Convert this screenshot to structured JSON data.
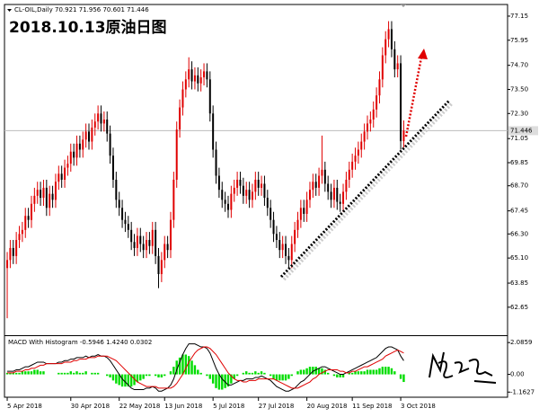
{
  "chart_data": [
    {
      "type": "candlestick",
      "title": "CL-OIL,Daily 70.921 71.956 70.601 71.446",
      "annotation": "2018.10.13原油日图",
      "up_color": "#e00000",
      "down_color": "#000000",
      "open": [
        64.6,
        65.0,
        65.6,
        65.2,
        66.0,
        66.3,
        66.5,
        67.2,
        67.0,
        67.8,
        68.2,
        68.5,
        68.1,
        68.6,
        67.6,
        68.3,
        68.0,
        68.9,
        69.3,
        69.0,
        69.6,
        69.8,
        70.4,
        70.1,
        70.8,
        70.5,
        71.0,
        71.4,
        70.9,
        71.6,
        71.9,
        72.3,
        71.8,
        72.0,
        71.3,
        70.2,
        69.0,
        68.0,
        67.6,
        67.0,
        66.8,
        66.5,
        65.9,
        65.6,
        66.2,
        65.8,
        65.5,
        66.0,
        65.7,
        66.5,
        65.2,
        64.3,
        65.0,
        65.8,
        65.5,
        67.0,
        69.0,
        71.5,
        72.6,
        73.5,
        74.0,
        74.5,
        73.9,
        74.2,
        73.8,
        74.1,
        74.4,
        74.0,
        72.3,
        70.5,
        69.2,
        68.5,
        68.0,
        67.8,
        67.5,
        68.3,
        68.6,
        69.0,
        68.7,
        68.2,
        68.5,
        68.0,
        68.4,
        69.0,
        68.6,
        68.8,
        68.1,
        67.6,
        67.0,
        66.3,
        66.0,
        65.5,
        65.8,
        65.2,
        65.0,
        65.8,
        66.5,
        67.0,
        67.6,
        67.3,
        68.0,
        68.5,
        68.9,
        68.6,
        69.2,
        69.5,
        68.8,
        68.4,
        68.0,
        68.6,
        67.9,
        67.8,
        68.4,
        69.0,
        69.5,
        69.9,
        70.2,
        70.5,
        70.9,
        71.4,
        71.8,
        72.0,
        72.5,
        73.2,
        74.0,
        75.2,
        76.0,
        76.5,
        75.5,
        74.5,
        74.8,
        70.921
      ],
      "high": [
        65.4,
        66.0,
        66.0,
        66.4,
        66.7,
        66.9,
        67.6,
        67.6,
        68.2,
        68.6,
        68.9,
        68.9,
        69.0,
        69.0,
        68.7,
        68.7,
        69.3,
        69.7,
        69.7,
        70.0,
        70.2,
        70.8,
        70.8,
        71.2,
        71.2,
        71.4,
        71.8,
        71.8,
        72.0,
        72.3,
        72.7,
        72.7,
        72.4,
        72.4,
        71.7,
        70.6,
        69.4,
        68.4,
        68.0,
        67.4,
        67.2,
        66.9,
        66.3,
        66.6,
        66.6,
        66.2,
        66.4,
        66.4,
        66.9,
        66.9,
        65.6,
        65.4,
        66.2,
        66.2,
        67.4,
        69.4,
        71.9,
        73.0,
        73.9,
        74.4,
        75.1,
        74.9,
        74.6,
        74.6,
        74.5,
        74.8,
        74.8,
        74.4,
        72.7,
        70.9,
        69.6,
        68.9,
        68.4,
        68.2,
        68.7,
        69.0,
        69.4,
        69.4,
        69.1,
        68.9,
        68.9,
        68.8,
        69.4,
        69.4,
        69.2,
        69.2,
        68.5,
        68.0,
        67.4,
        66.7,
        66.4,
        66.2,
        66.2,
        65.6,
        66.2,
        66.9,
        67.4,
        68.0,
        68.0,
        68.4,
        68.9,
        69.3,
        69.3,
        69.6,
        71.2,
        69.9,
        69.2,
        68.8,
        69.0,
        69.0,
        68.3,
        68.8,
        69.4,
        69.9,
        70.3,
        70.6,
        70.9,
        71.3,
        71.8,
        72.2,
        72.4,
        72.9,
        73.6,
        74.4,
        75.6,
        76.4,
        76.9,
        76.9,
        75.9,
        75.2,
        75.2,
        71.956
      ],
      "low": [
        62.1,
        64.6,
        64.8,
        64.8,
        65.6,
        65.9,
        66.1,
        66.6,
        66.6,
        67.4,
        67.8,
        67.7,
        67.7,
        67.2,
        67.2,
        67.6,
        67.6,
        68.5,
        68.6,
        68.6,
        69.2,
        69.4,
        69.7,
        69.7,
        70.1,
        70.1,
        70.6,
        70.5,
        70.5,
        71.2,
        71.5,
        71.4,
        71.4,
        70.9,
        69.8,
        68.6,
        67.6,
        67.2,
        66.6,
        66.4,
        66.1,
        65.5,
        65.2,
        65.2,
        65.4,
        65.1,
        65.1,
        65.3,
        65.3,
        64.8,
        63.6,
        63.9,
        64.6,
        65.1,
        65.1,
        66.6,
        68.6,
        71.1,
        72.2,
        73.1,
        73.6,
        73.5,
        73.5,
        73.4,
        73.4,
        73.7,
        73.6,
        71.9,
        70.1,
        68.8,
        68.1,
        67.6,
        67.4,
        67.1,
        67.1,
        67.9,
        68.2,
        68.3,
        67.8,
        67.8,
        67.6,
        67.6,
        68.0,
        68.2,
        68.2,
        67.7,
        67.2,
        66.6,
        65.9,
        65.6,
        65.1,
        65.1,
        64.8,
        64.6,
        64.6,
        65.4,
        66.1,
        66.6,
        66.9,
        66.9,
        67.6,
        68.1,
        68.2,
        68.2,
        68.8,
        68.4,
        68.0,
        67.6,
        67.6,
        67.5,
        67.4,
        67.4,
        68.0,
        68.6,
        69.1,
        69.5,
        69.8,
        70.1,
        70.5,
        71.0,
        71.4,
        71.6,
        72.1,
        72.8,
        73.6,
        74.8,
        75.6,
        75.1,
        74.1,
        74.1,
        70.5,
        70.601
      ],
      "close": [
        65.0,
        65.6,
        65.2,
        66.0,
        66.3,
        66.5,
        67.2,
        67.0,
        67.8,
        68.2,
        68.5,
        68.1,
        68.6,
        67.6,
        68.3,
        68.0,
        68.9,
        69.3,
        69.0,
        69.6,
        69.8,
        70.4,
        70.1,
        70.8,
        70.5,
        71.0,
        71.4,
        70.9,
        71.6,
        71.9,
        72.3,
        71.8,
        72.0,
        71.3,
        70.2,
        69.0,
        68.0,
        67.6,
        67.0,
        66.8,
        66.5,
        65.9,
        65.6,
        66.2,
        65.8,
        65.5,
        66.0,
        65.7,
        66.5,
        65.2,
        64.3,
        65.0,
        65.8,
        65.5,
        67.0,
        69.0,
        71.5,
        72.6,
        73.5,
        74.0,
        74.5,
        73.9,
        74.2,
        73.8,
        74.1,
        74.4,
        74.0,
        72.3,
        70.5,
        69.2,
        68.5,
        68.0,
        67.8,
        67.5,
        68.3,
        68.6,
        69.0,
        68.7,
        68.2,
        68.5,
        68.0,
        68.4,
        69.0,
        68.6,
        68.8,
        68.1,
        67.6,
        67.0,
        66.3,
        66.0,
        65.5,
        65.8,
        65.2,
        65.0,
        65.8,
        66.5,
        67.0,
        67.6,
        67.3,
        68.0,
        68.5,
        68.9,
        68.6,
        69.2,
        69.5,
        68.8,
        68.4,
        68.0,
        68.6,
        67.9,
        67.8,
        68.4,
        69.0,
        69.5,
        69.9,
        70.2,
        70.5,
        70.9,
        71.4,
        71.8,
        72.0,
        72.5,
        73.2,
        74.0,
        75.2,
        76.0,
        76.5,
        75.5,
        74.5,
        74.8,
        70.92,
        71.446
      ],
      "current_price": 71.446,
      "xlim": [
        -0.9,
        165.3
      ],
      "xticks": [
        {
          "value": 0,
          "label": "5 Apr 2018"
        },
        {
          "value": 21,
          "label": "30 Apr 2018"
        },
        {
          "value": 37,
          "label": "22 May 2018"
        },
        {
          "value": 52,
          "label": "13 Jun 2018"
        },
        {
          "value": 68,
          "label": "5 Jul 2018"
        },
        {
          "value": 83,
          "label": "27 Jul 2018"
        },
        {
          "value": 99,
          "label": "20 Aug 2018"
        },
        {
          "value": 114,
          "label": "11 Sep 2018"
        },
        {
          "value": 130,
          "label": "3 Oct 2018"
        }
      ],
      "ylim": [
        61.3,
        77.73
      ],
      "yticks": [
        77.15,
        75.95,
        {
          "value": 74.7,
          "label": "74.70"
        },
        {
          "value": 73.5,
          "label": "73.50"
        },
        {
          "value": 72.3,
          "label": "72.30"
        },
        71.05,
        69.85,
        {
          "value": 68.7,
          "label": "68.70"
        },
        67.45,
        {
          "value": 66.3,
          "label": "66.30"
        },
        {
          "value": 65.1,
          "label": "65.10"
        },
        63.85,
        62.65
      ]
    },
    {
      "type": "macd",
      "title": "MACD With Histogram -0.5946 1.4240 0.0302",
      "xlim": [
        -0.9,
        165.3
      ],
      "ylim": [
        -1.5,
        2.45
      ],
      "yticks": [
        2.0859,
        {
          "value": 0,
          "label": "0.00"
        },
        -1.1627
      ],
      "histogram": {
        "color": "#00dd00",
        "values": [
          0.1,
          0.1,
          0.1,
          0.1,
          0.1,
          0.2,
          0.2,
          0.2,
          0.2,
          0.3,
          0.3,
          0.2,
          0.2,
          0.0,
          0.0,
          0.0,
          0.0,
          0.1,
          0.1,
          0.1,
          0.1,
          0.2,
          0.1,
          0.2,
          0.1,
          0.1,
          0.2,
          0.0,
          0.1,
          0.1,
          0.1,
          0.0,
          0.0,
          -0.1,
          -0.2,
          -0.4,
          -0.6,
          -0.7,
          -0.8,
          -0.8,
          -0.8,
          -0.8,
          -0.7,
          -0.5,
          -0.4,
          -0.3,
          -0.1,
          -0.1,
          0.0,
          -0.1,
          -0.2,
          -0.2,
          -0.1,
          0.0,
          0.2,
          0.5,
          0.9,
          1.1,
          1.3,
          1.3,
          1.2,
          0.9,
          0.6,
          0.3,
          0.1,
          0.0,
          -0.1,
          -0.3,
          -0.6,
          -0.9,
          -1.0,
          -1.0,
          -0.9,
          -0.8,
          -0.6,
          -0.3,
          -0.1,
          0.0,
          0.1,
          0.2,
          0.1,
          0.1,
          0.2,
          0.1,
          0.2,
          0.1,
          0.0,
          -0.1,
          -0.3,
          -0.4,
          -0.4,
          -0.4,
          -0.4,
          -0.3,
          -0.1,
          0.0,
          0.2,
          0.3,
          0.3,
          0.4,
          0.5,
          0.5,
          0.5,
          0.4,
          0.4,
          0.3,
          0.1,
          0.0,
          -0.1,
          -0.2,
          -0.2,
          -0.2,
          0.0,
          0.1,
          0.1,
          0.2,
          0.2,
          0.2,
          0.2,
          0.3,
          0.3,
          0.3,
          0.3,
          0.4,
          0.5,
          0.5,
          0.5,
          0.4,
          0.2,
          0.0,
          -0.3,
          -0.5
        ]
      },
      "macd_line": {
        "color": "#000000",
        "values": [
          0.2,
          0.2,
          0.2,
          0.3,
          0.3,
          0.4,
          0.5,
          0.5,
          0.6,
          0.7,
          0.8,
          0.8,
          0.8,
          0.7,
          0.7,
          0.7,
          0.7,
          0.8,
          0.8,
          0.9,
          0.9,
          1.0,
          1.0,
          1.1,
          1.1,
          1.1,
          1.2,
          1.1,
          1.2,
          1.2,
          1.3,
          1.2,
          1.2,
          1.1,
          0.9,
          0.6,
          0.3,
          0.0,
          -0.3,
          -0.5,
          -0.7,
          -0.9,
          -1.0,
          -1.0,
          -1.0,
          -1.0,
          -0.9,
          -0.9,
          -0.8,
          -0.9,
          -1.1,
          -1.1,
          -1.0,
          -0.9,
          -0.7,
          -0.3,
          0.3,
          0.8,
          1.3,
          1.7,
          2.0,
          2.0,
          2.0,
          1.9,
          1.8,
          1.8,
          1.7,
          1.4,
          0.9,
          0.4,
          0.0,
          -0.3,
          -0.5,
          -0.7,
          -0.7,
          -0.6,
          -0.5,
          -0.4,
          -0.4,
          -0.3,
          -0.3,
          -0.3,
          -0.2,
          -0.2,
          -0.1,
          -0.2,
          -0.3,
          -0.4,
          -0.6,
          -0.8,
          -0.9,
          -1.0,
          -1.1,
          -1.1,
          -1.0,
          -0.9,
          -0.7,
          -0.5,
          -0.4,
          -0.2,
          0.0,
          0.2,
          0.3,
          0.4,
          0.5,
          0.5,
          0.4,
          0.3,
          0.2,
          0.1,
          0.0,
          0.0,
          0.1,
          0.2,
          0.3,
          0.4,
          0.5,
          0.6,
          0.7,
          0.8,
          0.9,
          1.0,
          1.1,
          1.3,
          1.5,
          1.7,
          1.8,
          1.8,
          1.7,
          1.6,
          1.2,
          0.9
        ]
      },
      "signal_line": {
        "color": "#e00000",
        "values": [
          0.1,
          0.1,
          0.1,
          0.2,
          0.2,
          0.2,
          0.3,
          0.3,
          0.4,
          0.4,
          0.5,
          0.6,
          0.6,
          0.7,
          0.7,
          0.7,
          0.7,
          0.7,
          0.7,
          0.8,
          0.8,
          0.8,
          0.9,
          0.9,
          1.0,
          1.0,
          1.0,
          1.1,
          1.1,
          1.1,
          1.2,
          1.2,
          1.2,
          1.2,
          1.1,
          1.0,
          0.9,
          0.7,
          0.5,
          0.3,
          0.1,
          -0.1,
          -0.3,
          -0.5,
          -0.6,
          -0.7,
          -0.8,
          -0.8,
          -0.8,
          -0.8,
          -0.9,
          -0.9,
          -0.9,
          -0.9,
          -0.9,
          -0.8,
          -0.6,
          -0.3,
          0.0,
          0.4,
          0.8,
          1.1,
          1.4,
          1.6,
          1.7,
          1.8,
          1.8,
          1.7,
          1.5,
          1.3,
          1.0,
          0.7,
          0.4,
          0.1,
          -0.1,
          -0.3,
          -0.4,
          -0.4,
          -0.5,
          -0.5,
          -0.4,
          -0.4,
          -0.4,
          -0.3,
          -0.3,
          -0.3,
          -0.3,
          -0.3,
          -0.3,
          -0.4,
          -0.5,
          -0.6,
          -0.7,
          -0.8,
          -0.9,
          -0.9,
          -0.9,
          -0.8,
          -0.7,
          -0.6,
          -0.5,
          -0.3,
          -0.2,
          0.0,
          0.1,
          0.2,
          0.3,
          0.3,
          0.3,
          0.3,
          0.2,
          0.2,
          0.1,
          0.1,
          0.2,
          0.2,
          0.3,
          0.4,
          0.5,
          0.5,
          0.6,
          0.7,
          0.8,
          0.9,
          1.0,
          1.2,
          1.3,
          1.4,
          1.5,
          1.6,
          1.5,
          1.4
        ]
      }
    }
  ]
}
